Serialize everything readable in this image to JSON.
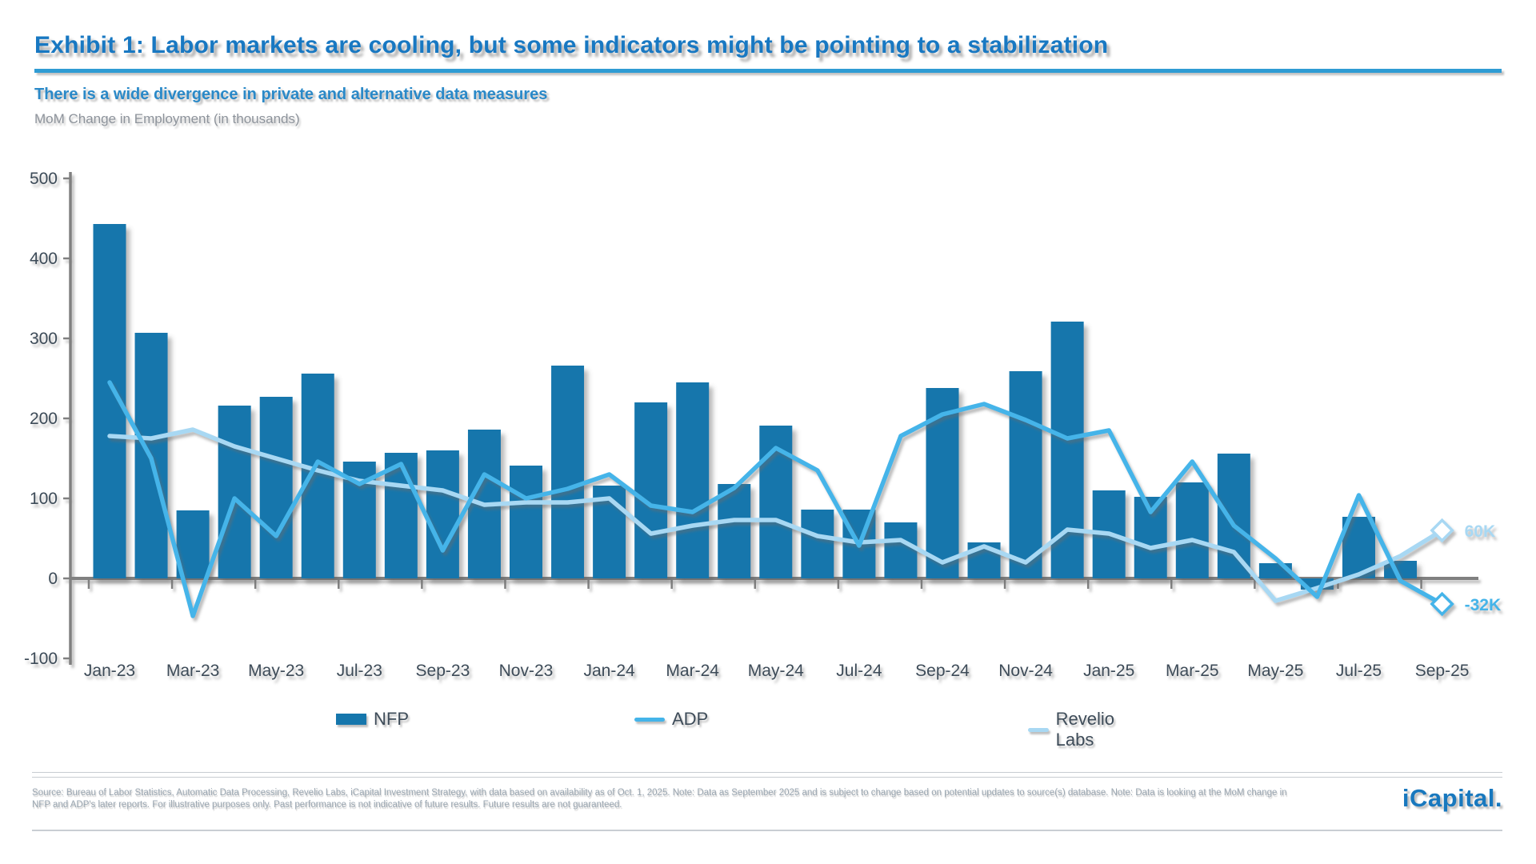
{
  "header": {
    "title": "Exhibit 1: Labor markets are cooling, but some indicators might be pointing to a stabilization",
    "subtitle": "There is a wide divergence in private and alternative data measures",
    "axis_title": "MoM Change in Employment (in thousands)"
  },
  "chart_data": {
    "type": "bar+line",
    "title": "MoM Change in Employment (in thousands)",
    "categories": [
      "Jan-23",
      "Feb-23",
      "Mar-23",
      "Apr-23",
      "May-23",
      "Jun-23",
      "Jul-23",
      "Aug-23",
      "Sep-23",
      "Oct-23",
      "Nov-23",
      "Dec-23",
      "Jan-24",
      "Feb-24",
      "Mar-24",
      "Apr-24",
      "May-24",
      "Jun-24",
      "Jul-24",
      "Aug-24",
      "Sep-24",
      "Oct-24",
      "Nov-24",
      "Dec-24",
      "Jan-25",
      "Feb-25",
      "Mar-25",
      "Apr-25",
      "May-25",
      "Jun-25",
      "Jul-25",
      "Aug-25",
      "Sep-25"
    ],
    "label_every": 2,
    "ylim": [
      -100,
      500
    ],
    "yticks": [
      500,
      400,
      300,
      200,
      100,
      0,
      -100
    ],
    "grid": false,
    "legend_position": "bottom",
    "series": [
      {
        "name": "NFP",
        "type": "bar",
        "color": "#1576AC",
        "values": [
          443,
          307,
          85,
          216,
          227,
          256,
          146,
          157,
          160,
          186,
          141,
          266,
          116,
          220,
          245,
          118,
          191,
          86,
          86,
          70,
          238,
          45,
          259,
          321,
          110,
          102,
          120,
          156,
          19,
          -14,
          77,
          22,
          null
        ]
      },
      {
        "name": "ADP",
        "type": "line",
        "color": "#44B4E9",
        "end_label": "-32K",
        "values": [
          245,
          150,
          -47,
          100,
          53,
          146,
          118,
          143,
          35,
          130,
          100,
          112,
          130,
          91,
          83,
          113,
          163,
          135,
          41,
          178,
          205,
          218,
          198,
          175,
          185,
          83,
          146,
          66,
          25,
          -23,
          104,
          -3,
          -32
        ]
      },
      {
        "name": "Revelio Labs",
        "type": "line",
        "color": "#A8D8F3",
        "end_label": "60K",
        "values": [
          178,
          175,
          186,
          165,
          150,
          135,
          122,
          116,
          110,
          92,
          95,
          95,
          100,
          56,
          66,
          73,
          73,
          53,
          45,
          48,
          20,
          40,
          20,
          61,
          56,
          38,
          48,
          33,
          -28,
          -12,
          5,
          28,
          60
        ]
      }
    ],
    "axis_color": "#808080",
    "tick_label_color": "#3D4B58"
  },
  "footer": {
    "source_line1": "Source: Bureau of Labor Statistics, Automatic Data Processing, Revelio Labs, iCapital Investment Strategy, with data based on availability as of Oct. 1, 2025. Note: Data as September 2025 and is subject to change based on potential updates to source(s) database. Note: Data is looking at the MoM change in",
    "source_line2": "NFP and ADP's later reports. For illustrative purposes only. Past performance is not indicative of future results. Future results are not guaranteed.",
    "logo_text": "iCapital."
  }
}
